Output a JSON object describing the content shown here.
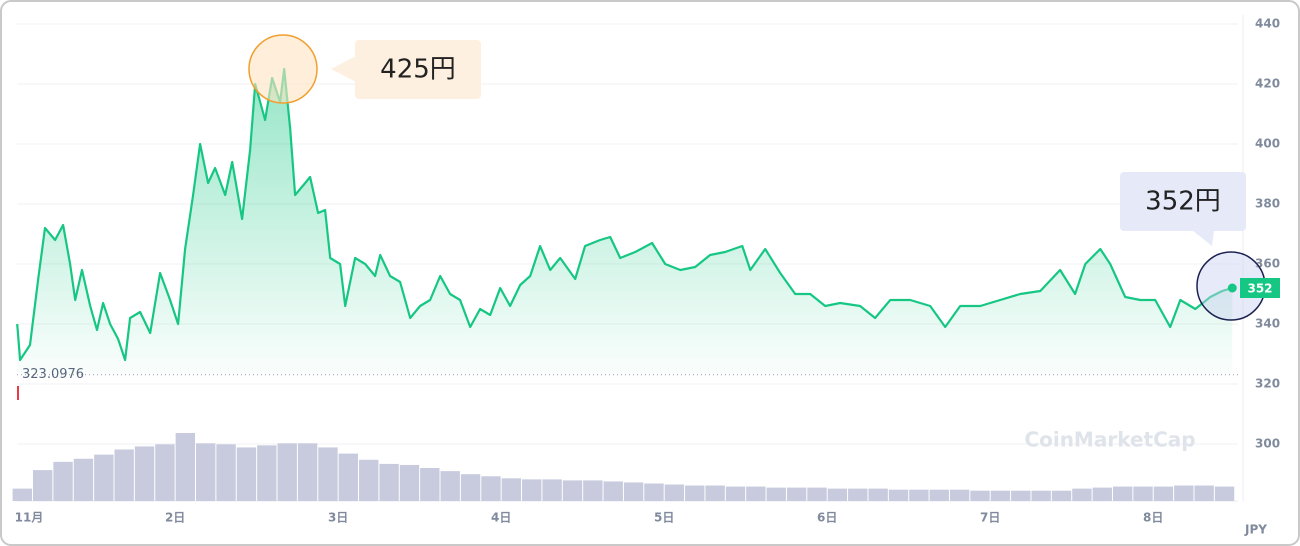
{
  "chart_data": {
    "type": "line",
    "xlim": [
      1.03,
      8.52
    ],
    "xticks": [
      {
        "value": 1,
        "label": "11月"
      },
      {
        "value": 2,
        "label": "2日"
      },
      {
        "value": 3,
        "label": "3日"
      },
      {
        "value": 4,
        "label": "4日"
      },
      {
        "value": 5,
        "label": "5日"
      },
      {
        "value": 6,
        "label": "6日"
      },
      {
        "value": 7,
        "label": "7日"
      },
      {
        "value": 8,
        "label": "8日"
      }
    ],
    "ylim": [
      281,
      443
    ],
    "yticks": [
      300,
      320,
      340,
      360,
      380,
      400,
      420,
      440
    ],
    "grid": true,
    "unit_label": "JPY",
    "watermark": "CoinMarketCap",
    "reference_line": {
      "value": 323.0976,
      "label": "323.0976"
    },
    "last_price": {
      "value": 352,
      "label": "352"
    },
    "annotations": [
      {
        "label": "425円"
      },
      {
        "label": "352円"
      }
    ],
    "series": [
      {
        "color": "#16c784",
        "x": [
          1.031,
          1.049,
          1.11,
          1.16,
          1.202,
          1.264,
          1.313,
          1.356,
          1.387,
          1.429,
          1.479,
          1.521,
          1.558,
          1.601,
          1.65,
          1.693,
          1.724,
          1.785,
          1.847,
          1.908,
          1.969,
          2.018,
          2.061,
          2.11,
          2.153,
          2.202,
          2.245,
          2.307,
          2.35,
          2.411,
          2.46,
          2.491,
          2.552,
          2.595,
          2.644,
          2.669,
          2.706,
          2.736,
          2.798,
          2.828,
          2.877,
          2.92,
          2.951,
          3.012,
          3.043,
          3.104,
          3.166,
          3.227,
          3.258,
          3.319,
          3.38,
          3.442,
          3.503,
          3.564,
          3.626,
          3.687,
          3.748,
          3.81,
          3.871,
          3.933,
          3.994,
          4.055,
          4.117,
          4.178,
          4.239,
          4.301,
          4.362,
          4.454,
          4.515,
          4.607,
          4.669,
          4.73,
          4.822,
          4.926,
          5.006,
          5.098,
          5.19,
          5.282,
          5.374,
          5.479,
          5.528,
          5.62,
          5.712,
          5.804,
          5.896,
          5.988,
          6.08,
          6.202,
          6.294,
          6.387,
          6.509,
          6.632,
          6.724,
          6.816,
          6.939,
          7.061,
          7.184,
          7.307,
          7.429,
          7.521,
          7.583,
          7.675,
          7.736,
          7.828,
          7.92,
          8.012,
          8.104,
          8.166,
          8.258,
          8.35,
          8.423,
          8.485
        ],
        "values": [
          340,
          328,
          333,
          355,
          372,
          368,
          373,
          360,
          348,
          358,
          346,
          338,
          347,
          340,
          335,
          328,
          342,
          344,
          337,
          357,
          348,
          340,
          365,
          383,
          400,
          387,
          392,
          383,
          394,
          375,
          398,
          420,
          408,
          422,
          414,
          425,
          405,
          383,
          387,
          389,
          377,
          378,
          362,
          360,
          346,
          362,
          360,
          356,
          363,
          356,
          354,
          342,
          346,
          348,
          356,
          350,
          348,
          339,
          345,
          343,
          352,
          346,
          353,
          356,
          366,
          358,
          362,
          355,
          366,
          368,
          369,
          362,
          364,
          367,
          360,
          358,
          359,
          363,
          364,
          366,
          358,
          365,
          357,
          350,
          350,
          346,
          347,
          346,
          342,
          348,
          348,
          346,
          339,
          346,
          346,
          348,
          350,
          351,
          358,
          350,
          360,
          365,
          360,
          349,
          348,
          348,
          339,
          348,
          345,
          349,
          351,
          352
        ]
      }
    ],
    "volume": {
      "color": "#c7cbdd",
      "x": [
        1.0625,
        1.1875,
        1.3125,
        1.4375,
        1.5625,
        1.6875,
        1.8125,
        1.9375,
        2.0625,
        2.1875,
        2.3125,
        2.4375,
        2.5625,
        2.6875,
        2.8125,
        2.9375,
        3.0625,
        3.1875,
        3.3125,
        3.4375,
        3.5625,
        3.6875,
        3.8125,
        3.9375,
        4.0625,
        4.1875,
        4.3125,
        4.4375,
        4.5625,
        4.6875,
        4.8125,
        4.9375,
        5.0625,
        5.1875,
        5.3125,
        5.4375,
        5.5625,
        5.6875,
        5.8125,
        5.9375,
        6.0625,
        6.1875,
        6.3125,
        6.4375,
        6.5625,
        6.6875,
        6.8125,
        6.9375,
        7.0625,
        7.1875,
        7.3125,
        7.4375,
        7.5625,
        7.6875,
        7.8125,
        7.9375,
        8.0625,
        8.1875,
        8.3125,
        8.4375
      ],
      "values": [
        12,
        30,
        38,
        41,
        45,
        50,
        53,
        55,
        66,
        56,
        55,
        52,
        54,
        56,
        56,
        52,
        46,
        40,
        36,
        35,
        32,
        29,
        26,
        24,
        22,
        21,
        21,
        20,
        20,
        19,
        18,
        17,
        16,
        15,
        15,
        14,
        14,
        13,
        13,
        13,
        12,
        12,
        12,
        11,
        11,
        11,
        11,
        10,
        10,
        10,
        10,
        10,
        12,
        13,
        14,
        14,
        14,
        15,
        15,
        14
      ]
    }
  }
}
